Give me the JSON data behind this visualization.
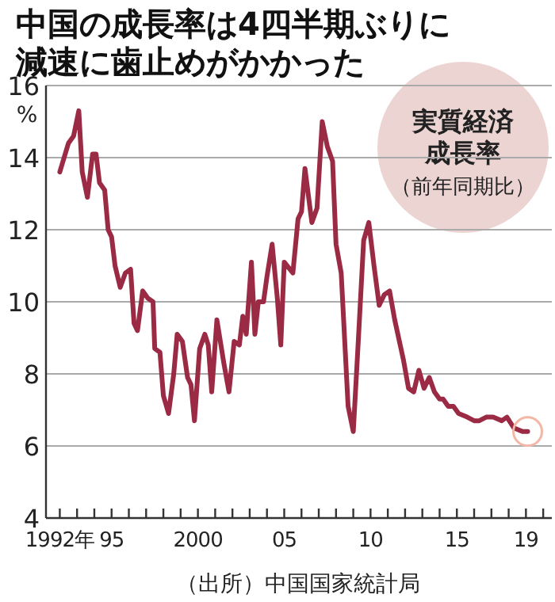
{
  "chart_data": {
    "type": "line",
    "title": "中国の成長率は4四半期ぶりに減速に歯止めがかかった",
    "ylabel": "%",
    "annotations": [
      "実質経済成長率",
      "（前年同期比）",
      "（出所）中国国家統計局"
    ],
    "x": [
      1992.0,
      1992.5,
      1992.8,
      1993.1,
      1993.3,
      1993.6,
      1993.9,
      1994.1,
      1994.3,
      1994.6,
      1994.8,
      1995.0,
      1995.2,
      1995.5,
      1995.8,
      1996.1,
      1996.3,
      1996.5,
      1996.8,
      1997.1,
      1997.4,
      1997.5,
      1997.8,
      1998.0,
      1998.3,
      1998.6,
      1998.8,
      1999.1,
      1999.4,
      1999.6,
      1999.8,
      2000.1,
      2000.4,
      2000.6,
      2000.8,
      2001.1,
      2001.3,
      2001.5,
      2001.8,
      2002.1,
      2002.4,
      2002.6,
      2002.8,
      2003.1,
      2003.3,
      2003.5,
      2003.8,
      2004.0,
      2004.3,
      2004.6,
      2004.8,
      2005.0,
      2005.5,
      2005.8,
      2006.0,
      2006.2,
      2006.6,
      2006.9,
      2007.2,
      2007.5,
      2007.8,
      2008.0,
      2008.3,
      2008.7,
      2009.0,
      2009.3,
      2009.6,
      2009.9,
      2010.2,
      2010.5,
      2010.8,
      2011.1,
      2011.4,
      2011.9,
      2012.2,
      2012.5,
      2012.8,
      2013.1,
      2013.4,
      2013.7,
      2014.0,
      2014.2,
      2014.5,
      2014.8,
      2015.1,
      2015.6,
      2016.0,
      2016.3,
      2016.7,
      2017.1,
      2017.6,
      2017.9,
      2018.3,
      2018.8,
      2019.1
    ],
    "series": [
      {
        "color": "#9b2a45",
        "values": [
          13.6,
          14.4,
          14.6,
          15.3,
          13.6,
          12.9,
          14.1,
          14.1,
          13.3,
          13.1,
          12.0,
          11.8,
          11.0,
          10.4,
          10.8,
          10.9,
          9.4,
          9.2,
          10.3,
          10.1,
          10.0,
          8.7,
          8.6,
          7.4,
          6.9,
          8.0,
          9.1,
          8.9,
          7.9,
          7.7,
          6.7,
          8.7,
          9.1,
          8.8,
          7.5,
          9.5,
          8.9,
          8.3,
          7.5,
          8.9,
          8.8,
          9.6,
          9.1,
          11.1,
          9.1,
          10.0,
          10.0,
          10.7,
          11.6,
          10.1,
          8.8,
          11.1,
          10.8,
          12.3,
          12.5,
          13.7,
          12.2,
          12.6,
          15.0,
          14.3,
          13.9,
          11.6,
          10.8,
          7.1,
          6.4,
          9.0,
          11.7,
          12.2,
          11.0,
          9.9,
          10.2,
          10.3,
          9.5,
          8.4,
          7.6,
          7.5,
          8.1,
          7.6,
          7.9,
          7.5,
          7.3,
          7.3,
          7.1,
          7.1,
          6.9,
          6.8,
          6.7,
          6.7,
          6.8,
          6.8,
          6.7,
          6.8,
          6.5,
          6.4,
          6.4
        ]
      }
    ],
    "xlim": [
      1991.2,
      2020.5
    ],
    "xticks": [
      {
        "value": 1992,
        "label": "1992年"
      },
      {
        "value": 1993,
        "label": null
      },
      {
        "value": 1994,
        "label": null
      },
      {
        "value": 1995,
        "label": "95"
      },
      {
        "value": 1996,
        "label": null
      },
      {
        "value": 1997,
        "label": null
      },
      {
        "value": 1998,
        "label": null
      },
      {
        "value": 1999,
        "label": null
      },
      {
        "value": 2000,
        "label": "2000"
      },
      {
        "value": 2001,
        "label": null
      },
      {
        "value": 2002,
        "label": null
      },
      {
        "value": 2003,
        "label": null
      },
      {
        "value": 2004,
        "label": null
      },
      {
        "value": 2005,
        "label": "05"
      },
      {
        "value": 2006,
        "label": null
      },
      {
        "value": 2007,
        "label": null
      },
      {
        "value": 2008,
        "label": null
      },
      {
        "value": 2009,
        "label": null
      },
      {
        "value": 2010,
        "label": "10"
      },
      {
        "value": 2011,
        "label": null
      },
      {
        "value": 2012,
        "label": null
      },
      {
        "value": 2013,
        "label": null
      },
      {
        "value": 2014,
        "label": null
      },
      {
        "value": 2015,
        "label": "15"
      },
      {
        "value": 2016,
        "label": null
      },
      {
        "value": 2017,
        "label": null
      },
      {
        "value": 2018,
        "label": null
      },
      {
        "value": 2019,
        "label": "19"
      },
      {
        "value": 2020,
        "label": null
      }
    ],
    "ylim": [
      4,
      16
    ],
    "yticks": [
      4,
      6,
      8,
      10,
      12,
      14,
      16
    ],
    "grid": "y",
    "marker": "none",
    "line_style": "solid"
  }
}
